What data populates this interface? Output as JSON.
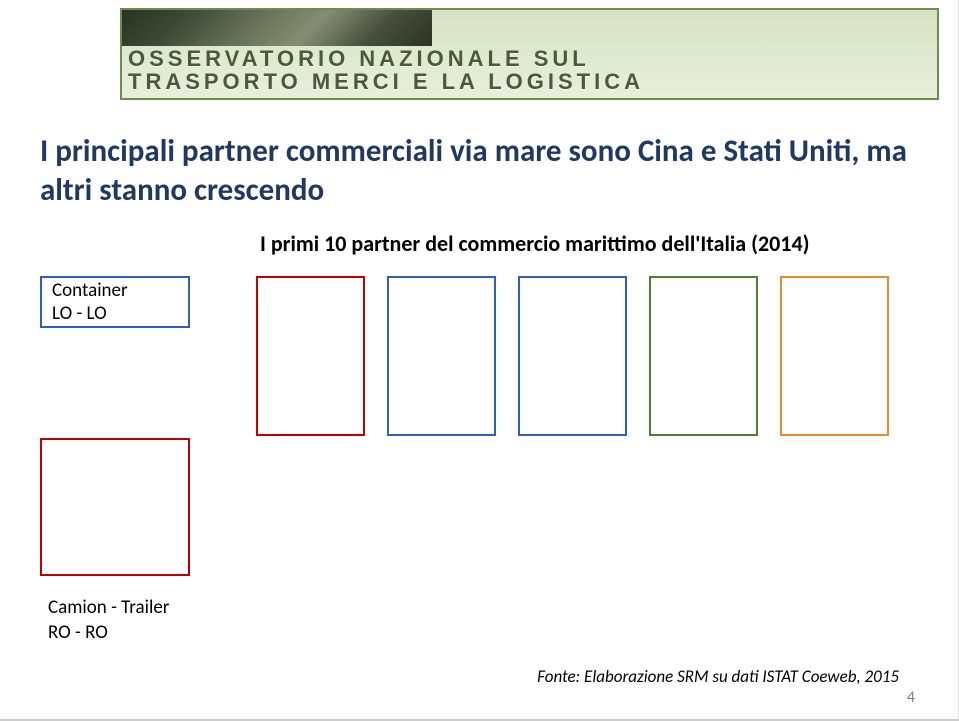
{
  "banner": {
    "line1": "OSSERVATORIO NAZIONALE SUL",
    "line2": "TRASPORTO MERCI E LA LOGISTICA",
    "border_color": "#6b8e4e",
    "text_color": "#4a5a39",
    "bg_gradient_top": "#d6e2c4",
    "bg_gradient_bottom": "#e8efdc"
  },
  "title": "I principali partner commerciali via mare sono Cina e Stati Uniti, ma altri stanno crescendo",
  "title_color": "#1f3864",
  "title_fontsize": 31,
  "subtitle": "I primi 10 partner del commercio marittimo dell'Italia (2014)",
  "subtitle_fontsize": 22,
  "label_container": {
    "line1": "Container",
    "line2": "LO - LO",
    "border_color": "#2e5fbc"
  },
  "label_roro_border": "#c00000",
  "camion_label": {
    "line1": "Camion - Trailer",
    "line2": "RO - RO"
  },
  "boxes": [
    {
      "border": "#c00000"
    },
    {
      "border": "#2e5fbc"
    },
    {
      "border": "#2e5fbc"
    },
    {
      "border": "#4f7f2f"
    },
    {
      "border": "#e68a2e"
    }
  ],
  "source": "Fonte: Elaborazione SRM su dati ISTAT Coeweb, 2015",
  "page_number": "4"
}
